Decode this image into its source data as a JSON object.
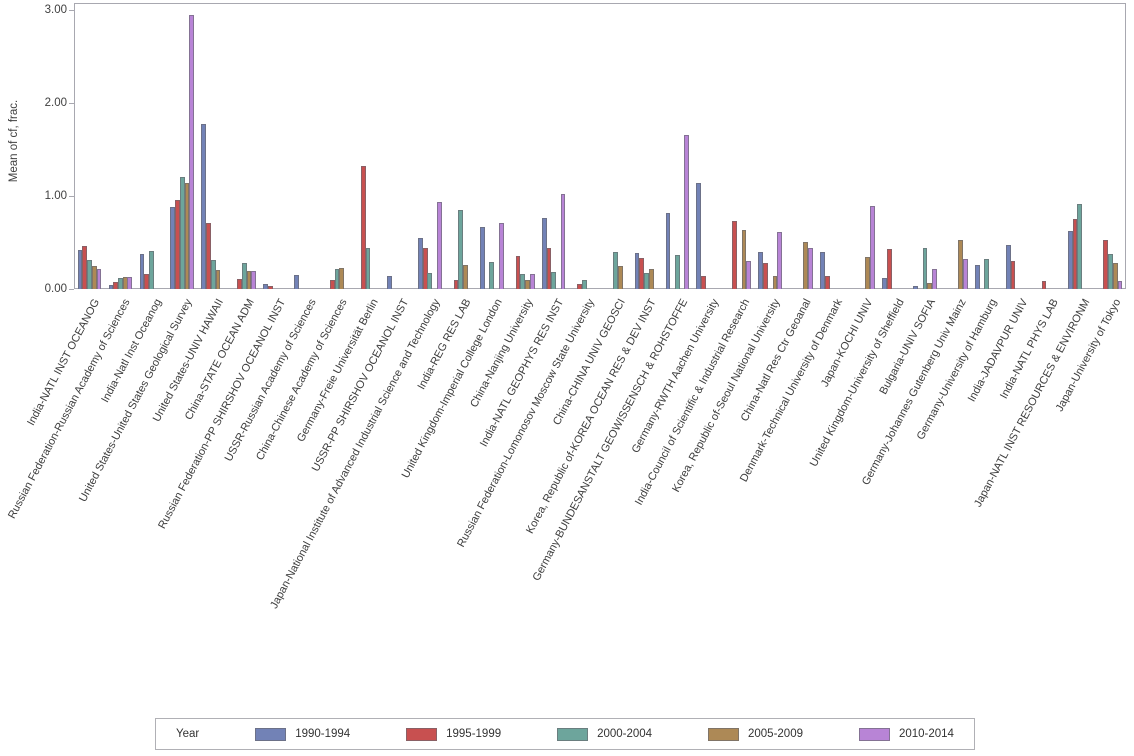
{
  "y_axis": {
    "title": "Mean of cf, frac.",
    "tick_labels": [
      "0.00",
      "1.00",
      "2.00",
      "3.00"
    ]
  },
  "legend": {
    "title": "Year",
    "position": "bottom"
  },
  "chart_data": {
    "type": "bar",
    "title": "",
    "xlabel": "",
    "ylabel": "Mean of cf, frac.",
    "ylim": [
      0,
      3.0
    ],
    "yticks": [
      0.0,
      1.0,
      2.0,
      3.0
    ],
    "grid": false,
    "legend_position": "bottom",
    "axis_color": "#a8a8b0",
    "categories": [
      "India-NATL INST OCEANOG",
      "Russian Federation-Russian Academy of Sciences",
      "India-Natl Inst Oceanog",
      "United States-United States Geological Survey",
      "United States-UNIV HAWAII",
      "China-STATE OCEAN ADM",
      "Russian Federation-PP SHIRSHOV OCEANOL INST",
      "USSR-Russian Academy of Sciences",
      "China-Chinese Academy of Sciences",
      "Germany-Freie Universität Berlin",
      "USSR-PP SHIRSHOV OCEANOL INST",
      "Japan-National Institute of Advanced Industrial Science and Technology",
      "India-REG RES LAB",
      "United Kingdom-Imperial College London",
      "China-Nanjing University",
      "India-NATL GEOPHYS RES INST",
      "Russian Federation-Lomonosov Moscow State University",
      "China-CHINA UNIV GEOSCI",
      "Korea, Republic of-KOREA OCEAN RES & DEV INST",
      "Germany-BUNDESANSTALT GEOWISSENSCH & ROHSTOFFE",
      "Germany-RWTH Aachen University",
      "India-Council of Scientific & Industrial Research",
      "Korea, Republic of-Seoul National University",
      "China-Natl Res Ctr Geoanal",
      "Denmark-Technical University of Denmark",
      "Japan-KOCHI UNIV",
      "United Kingdom-University of Sheffield",
      "Bulgaria-UNIV SOFIA",
      "Germany-Johannes Gutenberg Univ Mainz",
      "Germany-University of Hamburg",
      "India-JADAVPUR UNIV",
      "India-NATL PHYS LAB",
      "Japan-NATL INST RESOURCES & ENVIRONM",
      "Japan-University of Tokyo"
    ],
    "series": [
      {
        "name": "1990-1994",
        "color": "#7282b6",
        "values": [
          0.42,
          0.04,
          0.38,
          0.88,
          1.77,
          0,
          0.05,
          0.15,
          0,
          0,
          0.14,
          0.55,
          0,
          0.67,
          0,
          0.76,
          0,
          0,
          0.39,
          0.82,
          1.14,
          0,
          0.4,
          0,
          0.4,
          0,
          0.12,
          0.03,
          0,
          0.26,
          0.47,
          0,
          0.62,
          0
        ]
      },
      {
        "name": "1995-1999",
        "color": "#c85050",
        "values": [
          0.46,
          0.07,
          0.16,
          0.96,
          0.71,
          0.11,
          0.03,
          0,
          0.1,
          1.32,
          0,
          0.44,
          0.1,
          0,
          0.36,
          0.44,
          0.05,
          0,
          0.33,
          0,
          0.14,
          0.73,
          0.28,
          0,
          0.14,
          0,
          0.43,
          0,
          0,
          0,
          0.3,
          0.09,
          0.75,
          0.53
        ]
      },
      {
        "name": "2000-2004",
        "color": "#6da59c",
        "values": [
          0.31,
          0.12,
          0.41,
          1.2,
          0.31,
          0.28,
          0,
          0,
          0.22,
          0.44,
          0,
          0.17,
          0.85,
          0.29,
          0.16,
          0.18,
          0.1,
          0.4,
          0.17,
          0.37,
          0,
          0,
          0,
          0,
          0,
          0,
          0,
          0.44,
          0,
          0.32,
          0,
          0,
          0.91,
          0.38
        ]
      },
      {
        "name": "2005-2009",
        "color": "#ad8956",
        "values": [
          0.25,
          0.13,
          0,
          1.14,
          0.2,
          0.19,
          0,
          0,
          0.23,
          0,
          0,
          0,
          0.26,
          0,
          0.1,
          0,
          0,
          0.25,
          0.21,
          0,
          0,
          0.63,
          0.14,
          0.51,
          0,
          0.34,
          0,
          0.06,
          0.53,
          0,
          0,
          0,
          0,
          0.28
        ]
      },
      {
        "name": "2010-2014",
        "color": "#b884d6",
        "values": [
          0.21,
          0.13,
          0,
          2.95,
          0,
          0.19,
          0,
          0,
          0,
          0,
          0,
          0.94,
          0,
          0.71,
          0.16,
          1.02,
          0,
          0,
          0,
          1.66,
          0,
          0.3,
          0.61,
          0.44,
          0,
          0.89,
          0,
          0.21,
          0.32,
          0,
          0,
          0,
          0,
          0.09
        ]
      }
    ]
  }
}
